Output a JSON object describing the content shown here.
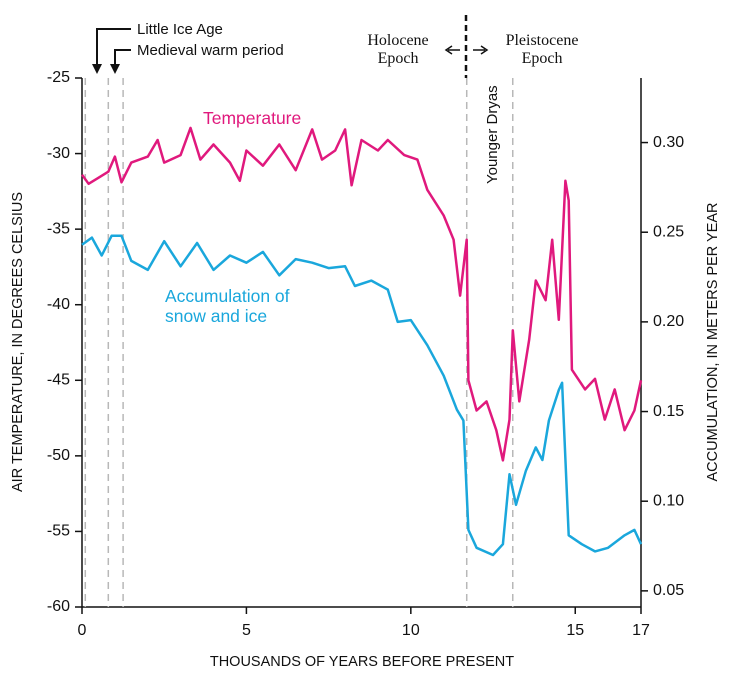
{
  "chart_data": {
    "type": "line",
    "xlabel": "THOUSANDS OF YEARS BEFORE PRESENT",
    "ylabel": "AIR TEMPERATURE, IN DEGREES CELSIUS",
    "y2label": "ACCUMULATION, IN METERS PER YEAR",
    "annotations": {
      "little_ice_age": "Little Ice Age",
      "medieval_warm_period": "Medieval warm period",
      "holocene": "Holocene Epoch",
      "pleistocene": "Pleistocene Epoch",
      "younger_dryas": "Younger Dryas"
    },
    "reference_lines": [
      0.1,
      0.8,
      1.25,
      11.7,
      13.1
    ],
    "xlim": [
      0,
      17
    ],
    "xticks": [
      0,
      5,
      10,
      15,
      17
    ],
    "ylim": [
      -60,
      -25
    ],
    "yticks": [
      -25,
      -30,
      -35,
      -40,
      -45,
      -50,
      -55,
      -60
    ],
    "y2lim": [
      0.041,
      0.336
    ],
    "y2ticks": [
      {
        "value": 0.3,
        "label": "0.30"
      },
      0.25,
      {
        "value": 0.2,
        "label": "0.20"
      },
      0.15,
      {
        "value": 0.1,
        "label": "0.10"
      },
      0.05
    ],
    "series": [
      {
        "name": "Temperature",
        "color": "#e0197d",
        "x": [
          0,
          0.2,
          0.5,
          0.8,
          1.0,
          1.2,
          1.5,
          2.0,
          2.3,
          2.5,
          3.0,
          3.3,
          3.6,
          4.0,
          4.5,
          4.8,
          5.0,
          5.5,
          6.0,
          6.5,
          7.0,
          7.3,
          7.7,
          8.0,
          8.2,
          8.5,
          9.0,
          9.3,
          9.8,
          10.2,
          10.5,
          11.0,
          11.3,
          11.5,
          11.7,
          11.75,
          12.0,
          12.3,
          12.6,
          12.8,
          13.0,
          13.1,
          13.3,
          13.6,
          13.8,
          14.1,
          14.3,
          14.5,
          14.7,
          14.8,
          14.9,
          15.3,
          15.6,
          15.9,
          16.2,
          16.5,
          16.8,
          17.0
        ],
        "values": [
          -31.4,
          -32,
          -31.6,
          -31.2,
          -30.2,
          -31.9,
          -30.6,
          -30.2,
          -29.1,
          -30.6,
          -30.1,
          -28.3,
          -30.4,
          -29.4,
          -30.6,
          -31.8,
          -29.8,
          -30.8,
          -29.4,
          -31.1,
          -28.4,
          -30.4,
          -29.8,
          -28.4,
          -32.1,
          -29.1,
          -29.8,
          -29.1,
          -30.1,
          -30.4,
          -32.4,
          -34.1,
          -35.7,
          -39.4,
          -35.7,
          -45,
          -47,
          -46.4,
          -48.3,
          -50.3,
          -47.6,
          -41.7,
          -46.4,
          -42.3,
          -38.4,
          -39.7,
          -35.7,
          -41,
          -31.8,
          -33.1,
          -44.3,
          -45.6,
          -44.9,
          -47.6,
          -45.6,
          -48.3,
          -47,
          -45
        ]
      },
      {
        "name": "Accumulation of snow and ice",
        "color": "#1aa7dc",
        "axis": "y2",
        "x": [
          0,
          0.3,
          0.6,
          0.9,
          1.2,
          1.5,
          2.0,
          2.5,
          3.0,
          3.5,
          4.0,
          4.5,
          5.0,
          5.5,
          6.0,
          6.5,
          7.0,
          7.5,
          8.0,
          8.3,
          8.8,
          9.3,
          9.6,
          10.0,
          10.5,
          11.0,
          11.4,
          11.6,
          11.75,
          12.0,
          12.5,
          12.8,
          13.0,
          13.2,
          13.5,
          13.8,
          14.0,
          14.2,
          14.5,
          14.6,
          14.8,
          15.2,
          15.6,
          16.0,
          16.5,
          16.8,
          17.0
        ],
        "values": [
          0.243,
          0.247,
          0.237,
          0.248,
          0.248,
          0.234,
          0.229,
          0.245,
          0.231,
          0.244,
          0.229,
          0.237,
          0.233,
          0.239,
          0.226,
          0.235,
          0.233,
          0.23,
          0.231,
          0.22,
          0.223,
          0.218,
          0.2,
          0.201,
          0.187,
          0.17,
          0.151,
          0.145,
          0.084,
          0.074,
          0.07,
          0.076,
          0.115,
          0.098,
          0.117,
          0.13,
          0.123,
          0.145,
          0.162,
          0.166,
          0.081,
          0.076,
          0.072,
          0.074,
          0.081,
          0.084,
          0.076
        ]
      }
    ]
  }
}
